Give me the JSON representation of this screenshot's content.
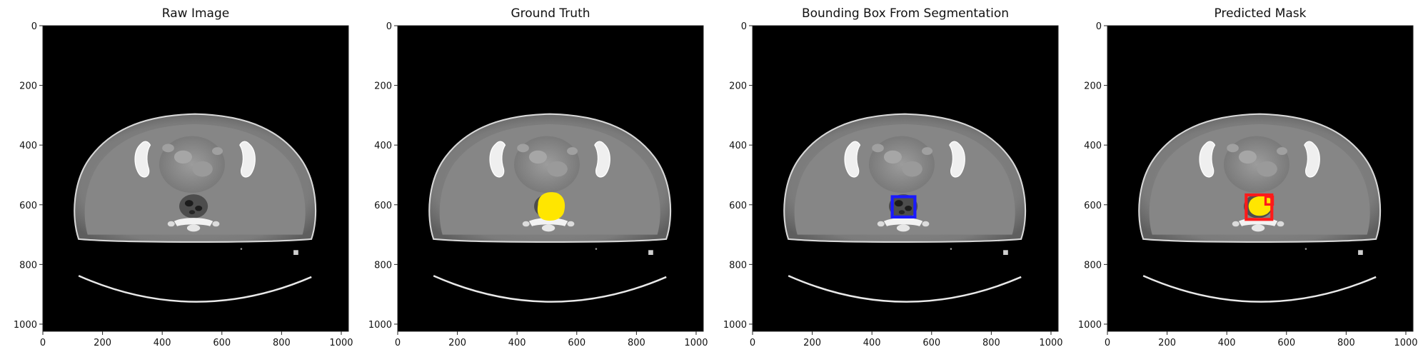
{
  "figure": {
    "panels": [
      {
        "id": "raw",
        "title": "Raw Image",
        "overlay": "none"
      },
      {
        "id": "gt",
        "title": "Ground Truth",
        "overlay": "mask"
      },
      {
        "id": "bbox",
        "title": "Bounding Box From Segmentation",
        "overlay": "bbox"
      },
      {
        "id": "pred",
        "title": "Predicted Mask",
        "overlay": "prediction"
      }
    ],
    "image_extent": [
      0,
      1024
    ],
    "x_ticks": [
      0,
      200,
      400,
      600,
      800,
      1000
    ],
    "y_ticks": [
      0,
      200,
      400,
      600,
      800,
      1000
    ],
    "colors": {
      "mask": "#ffe600",
      "bbox": "#1a1aff",
      "pred_box": "#ff1a1a"
    }
  }
}
